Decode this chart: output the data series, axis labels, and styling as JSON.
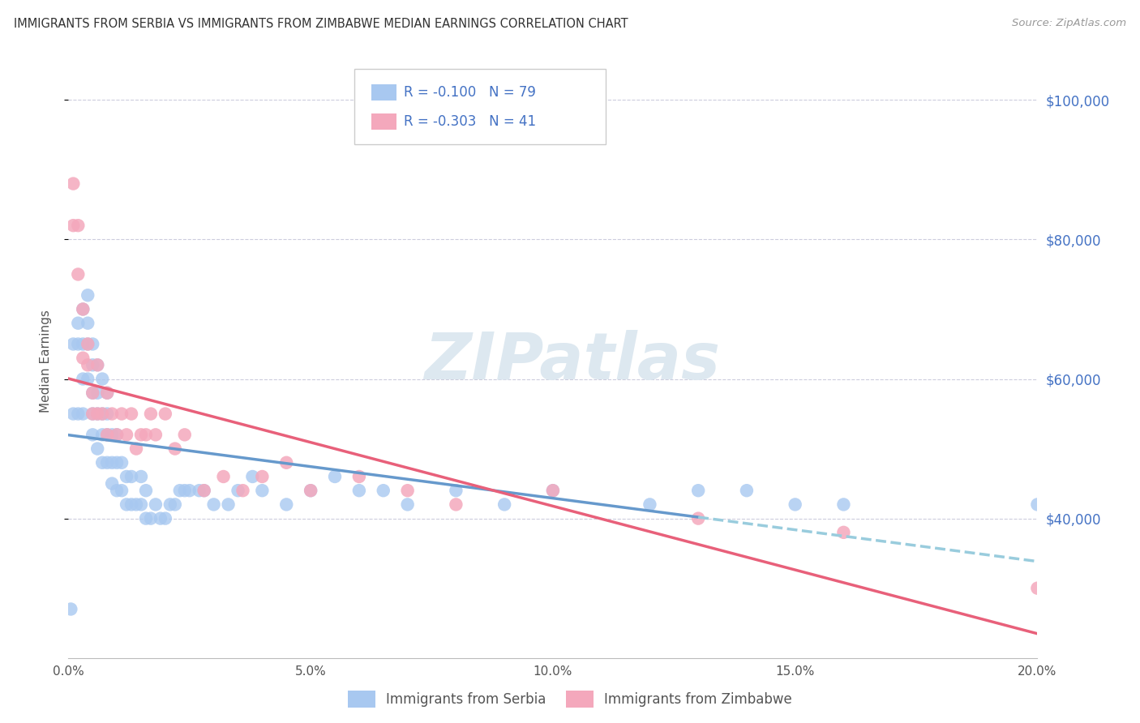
{
  "title": "IMMIGRANTS FROM SERBIA VS IMMIGRANTS FROM ZIMBABWE MEDIAN EARNINGS CORRELATION CHART",
  "source": "Source: ZipAtlas.com",
  "ylabel": "Median Earnings",
  "x_min": 0.0,
  "x_max": 0.2,
  "y_min": 20000,
  "y_max": 105000,
  "ytick_labels": [
    "$100,000",
    "$80,000",
    "$60,000",
    "$40,000"
  ],
  "ytick_values": [
    100000,
    80000,
    60000,
    40000
  ],
  "xtick_labels": [
    "0.0%",
    "5.0%",
    "10.0%",
    "15.0%",
    "20.0%"
  ],
  "xtick_values": [
    0.0,
    0.05,
    0.1,
    0.15,
    0.2
  ],
  "serbia_color": "#a8c8f0",
  "zimbabwe_color": "#f4a8bc",
  "serbia_R": -0.1,
  "serbia_N": 79,
  "zimbabwe_R": -0.303,
  "zimbabwe_N": 41,
  "serbia_line_color": "#6699cc",
  "zimbabwe_line_color": "#e8607a",
  "dashed_line_color": "#99ccdd",
  "background_color": "#ffffff",
  "grid_color": "#ccccdd",
  "watermark_color": "#dde8f0",
  "legend_text_color": "#4472c4",
  "legend_label_serbia": "Immigrants from Serbia",
  "legend_label_zimbabwe": "Immigrants from Zimbabwe",
  "serbia_x": [
    0.0005,
    0.001,
    0.001,
    0.002,
    0.002,
    0.002,
    0.003,
    0.003,
    0.003,
    0.003,
    0.004,
    0.004,
    0.004,
    0.004,
    0.005,
    0.005,
    0.005,
    0.005,
    0.005,
    0.006,
    0.006,
    0.006,
    0.006,
    0.007,
    0.007,
    0.007,
    0.007,
    0.008,
    0.008,
    0.008,
    0.008,
    0.009,
    0.009,
    0.009,
    0.01,
    0.01,
    0.01,
    0.011,
    0.011,
    0.012,
    0.012,
    0.013,
    0.013,
    0.014,
    0.015,
    0.015,
    0.016,
    0.016,
    0.017,
    0.018,
    0.019,
    0.02,
    0.021,
    0.022,
    0.023,
    0.024,
    0.025,
    0.027,
    0.028,
    0.03,
    0.033,
    0.035,
    0.038,
    0.04,
    0.045,
    0.05,
    0.055,
    0.06,
    0.065,
    0.07,
    0.08,
    0.09,
    0.1,
    0.12,
    0.14,
    0.16,
    0.13,
    0.15,
    0.2
  ],
  "serbia_y": [
    27000,
    55000,
    65000,
    55000,
    65000,
    68000,
    55000,
    60000,
    65000,
    70000,
    60000,
    65000,
    68000,
    72000,
    52000,
    55000,
    58000,
    62000,
    65000,
    50000,
    55000,
    58000,
    62000,
    48000,
    52000,
    55000,
    60000,
    48000,
    52000,
    55000,
    58000,
    45000,
    48000,
    52000,
    44000,
    48000,
    52000,
    44000,
    48000,
    42000,
    46000,
    42000,
    46000,
    42000,
    42000,
    46000,
    40000,
    44000,
    40000,
    42000,
    40000,
    40000,
    42000,
    42000,
    44000,
    44000,
    44000,
    44000,
    44000,
    42000,
    42000,
    44000,
    46000,
    44000,
    42000,
    44000,
    46000,
    44000,
    44000,
    42000,
    44000,
    42000,
    44000,
    42000,
    44000,
    42000,
    44000,
    42000,
    42000
  ],
  "zimbabwe_x": [
    0.001,
    0.001,
    0.002,
    0.002,
    0.003,
    0.003,
    0.004,
    0.004,
    0.005,
    0.005,
    0.006,
    0.006,
    0.007,
    0.008,
    0.008,
    0.009,
    0.01,
    0.011,
    0.012,
    0.013,
    0.014,
    0.015,
    0.016,
    0.017,
    0.018,
    0.02,
    0.022,
    0.024,
    0.028,
    0.032,
    0.036,
    0.04,
    0.045,
    0.05,
    0.06,
    0.07,
    0.08,
    0.1,
    0.13,
    0.16,
    0.2
  ],
  "zimbabwe_y": [
    88000,
    82000,
    82000,
    75000,
    63000,
    70000,
    62000,
    65000,
    55000,
    58000,
    55000,
    62000,
    55000,
    52000,
    58000,
    55000,
    52000,
    55000,
    52000,
    55000,
    50000,
    52000,
    52000,
    55000,
    52000,
    55000,
    50000,
    52000,
    44000,
    46000,
    44000,
    46000,
    48000,
    44000,
    46000,
    44000,
    42000,
    44000,
    40000,
    38000,
    30000
  ]
}
